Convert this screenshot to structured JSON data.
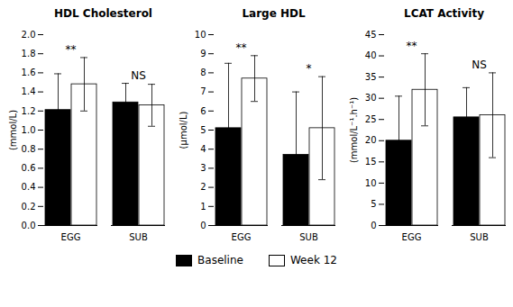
{
  "chart_data": [
    {
      "type": "bar",
      "title": "HDL Cholesterol",
      "ylabel": "(mmol/L)",
      "categories": [
        "EGG",
        "SUB"
      ],
      "series": [
        {
          "name": "Baseline",
          "color": "#000000",
          "values": [
            1.21,
            1.29
          ],
          "errors": [
            0.38,
            0.2
          ]
        },
        {
          "name": "Week 12",
          "color": "#ffffff",
          "values": [
            1.48,
            1.26
          ],
          "errors": [
            0.28,
            0.22
          ]
        }
      ],
      "ylim": [
        0,
        2
      ],
      "yticks": [
        {
          "value": 0,
          "label": "0.0"
        },
        0.2,
        0.4,
        0.6,
        0.8,
        {
          "value": 1,
          "label": "1.0"
        },
        1.2,
        1.4,
        1.6,
        1.8,
        {
          "value": 2,
          "label": "2.0"
        }
      ],
      "annotations": [
        {
          "text": "**",
          "category": "EGG"
        },
        {
          "text": "NS",
          "category": "SUB"
        }
      ],
      "grid": false,
      "legend": "bottom"
    },
    {
      "type": "bar",
      "title": "Large HDL",
      "ylabel": "(μmol/L)",
      "categories": [
        "EGG",
        "SUB"
      ],
      "series": [
        {
          "name": "Baseline",
          "color": "#000000",
          "values": [
            5.1,
            3.7
          ],
          "errors": [
            3.4,
            3.3
          ]
        },
        {
          "name": "Week 12",
          "color": "#ffffff",
          "values": [
            7.7,
            5.1
          ],
          "errors": [
            1.2,
            2.7
          ]
        }
      ],
      "ylim": [
        0,
        10
      ],
      "yticks": [
        0,
        1,
        2,
        3,
        4,
        5,
        6,
        7,
        8,
        9,
        10
      ],
      "annotations": [
        {
          "text": "**",
          "category": "EGG"
        },
        {
          "text": "*",
          "category": "SUB"
        }
      ],
      "grid": false,
      "legend": "bottom"
    },
    {
      "type": "bar",
      "title": "LCAT Activity",
      "ylabel": "(mmol/L⁻¹.h⁻¹)",
      "categories": [
        "EGG",
        "SUB"
      ],
      "series": [
        {
          "name": "Baseline",
          "color": "#000000",
          "values": [
            20.0,
            25.5
          ],
          "errors": [
            10.5,
            7.0
          ]
        },
        {
          "name": "Week 12",
          "color": "#ffffff",
          "values": [
            32.0,
            26.0
          ],
          "errors": [
            8.5,
            10.0
          ]
        }
      ],
      "ylim": [
        0,
        45
      ],
      "yticks": [
        0,
        5,
        10,
        15,
        20,
        25,
        30,
        35,
        40,
        45
      ],
      "annotations": [
        {
          "text": "**",
          "category": "EGG"
        },
        {
          "text": "NS",
          "category": "SUB"
        }
      ],
      "grid": false,
      "legend": "bottom"
    }
  ]
}
